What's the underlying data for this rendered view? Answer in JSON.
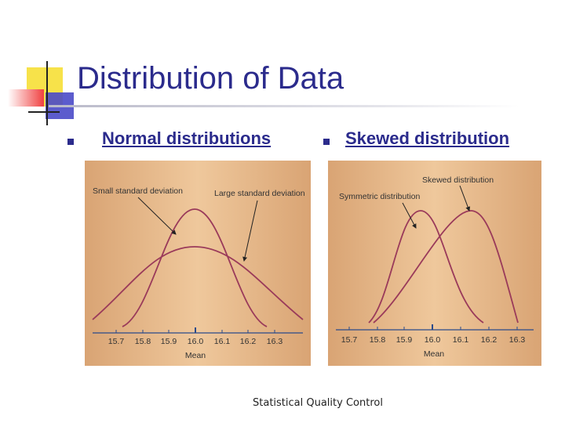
{
  "slide": {
    "title": "Distribution of Data",
    "footer": "Statistical Quality Control"
  },
  "bullets": [
    {
      "label": "Normal distributions"
    },
    {
      "label": "Skewed distribution"
    }
  ],
  "figures": {
    "normal": {
      "annotations": [
        "Small standard deviation",
        "Large standard deviation"
      ],
      "ticks": [
        "15.7",
        "15.8",
        "15.9",
        "16.0",
        "16.1",
        "16.2",
        "16.3"
      ],
      "axis_label": "Mean"
    },
    "skewed": {
      "annotations": [
        "Symmetric distribution",
        "Skewed distribution"
      ],
      "ticks": [
        "15.7",
        "15.8",
        "15.9",
        "16.0",
        "16.1",
        "16.2",
        "16.3"
      ],
      "axis_label": "Mean"
    }
  },
  "colors": {
    "title": "#2b2b8c",
    "panel_bg": "#e6bb8e",
    "curve": "#9a3a5a",
    "axis": "#2a4a8a"
  }
}
